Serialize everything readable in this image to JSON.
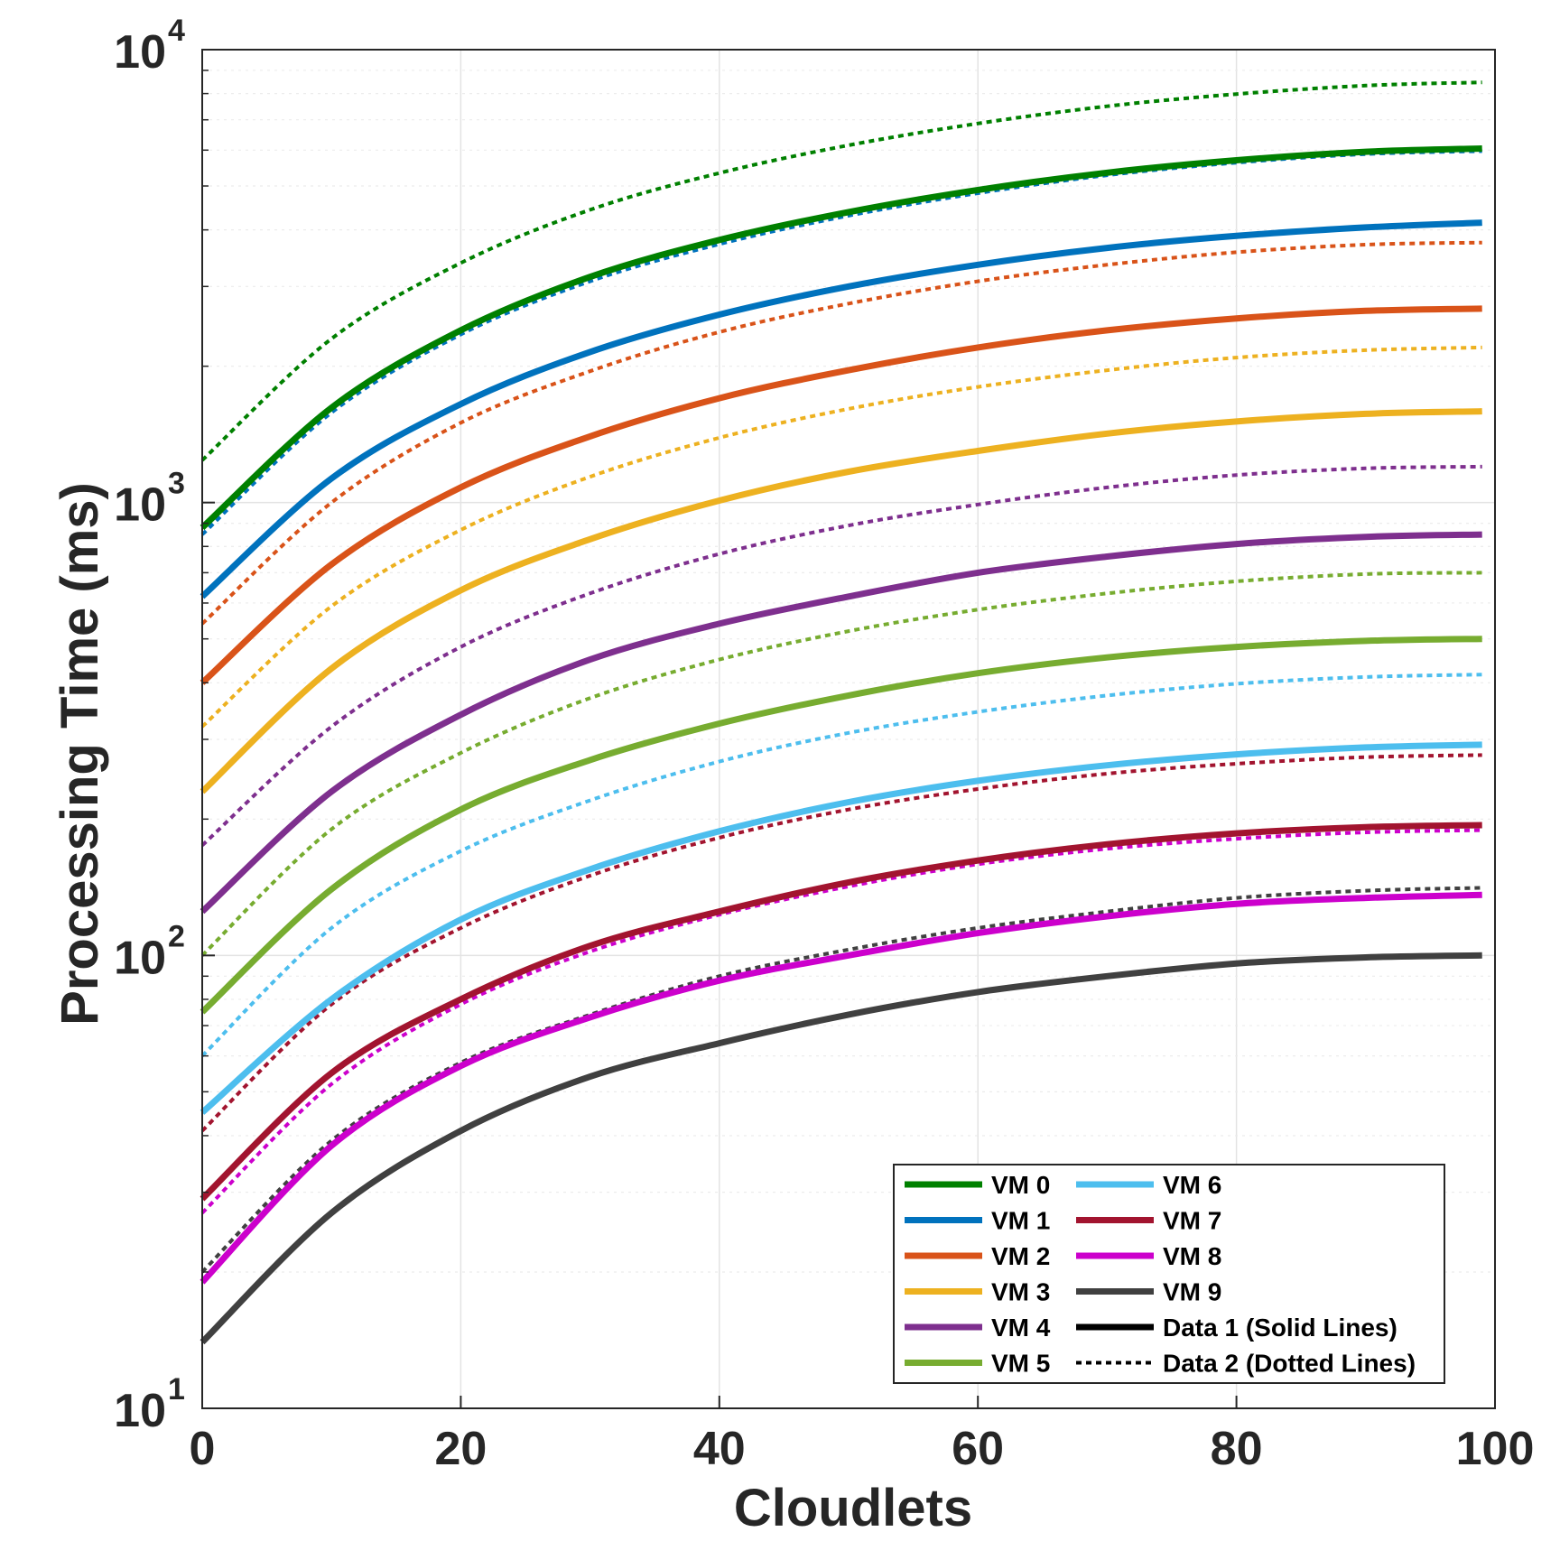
{
  "chart_data": {
    "type": "line",
    "title": "",
    "xlabel": "Cloudlets",
    "ylabel": "Processing Time (ms)",
    "xlim": [
      0,
      100
    ],
    "ylim": [
      10,
      10000
    ],
    "yscale": "log",
    "grid": true,
    "legend_position": "bottom-right",
    "x_ticks": [
      0,
      20,
      40,
      60,
      80,
      100
    ],
    "y_ticks": [
      {
        "value": 10,
        "base": "10",
        "exp": "1"
      },
      {
        "value": 100,
        "base": "10",
        "exp": "2"
      },
      {
        "value": 1000,
        "base": "10",
        "exp": "3"
      },
      {
        "value": 10000,
        "base": "10",
        "exp": "4"
      }
    ],
    "x": [
      0,
      10,
      20,
      30,
      40,
      50,
      60,
      70,
      80,
      90,
      99
    ],
    "series": [
      {
        "name": "VM 0",
        "color": "#008000",
        "style": "solid",
        "values": [
          880,
          1620,
          2400,
          3150,
          3800,
          4380,
          4900,
          5350,
          5700,
          5950,
          6050
        ]
      },
      {
        "name": "VM 1",
        "color": "#0072BD",
        "style": "solid",
        "values": [
          620,
          1130,
          1650,
          2150,
          2600,
          3000,
          3350,
          3650,
          3880,
          4050,
          4150
        ]
      },
      {
        "name": "VM 2",
        "color": "#D95319",
        "style": "solid",
        "values": [
          400,
          730,
          1080,
          1400,
          1700,
          1960,
          2200,
          2400,
          2550,
          2650,
          2680
        ]
      },
      {
        "name": "VM 3",
        "color": "#EDB120",
        "style": "solid",
        "values": [
          230,
          430,
          640,
          830,
          1010,
          1170,
          1300,
          1420,
          1510,
          1570,
          1590
        ]
      },
      {
        "name": "VM 4",
        "color": "#7E2F8E",
        "style": "solid",
        "values": [
          125,
          230,
          340,
          450,
          540,
          620,
          700,
          760,
          810,
          840,
          850
        ]
      },
      {
        "name": "VM 5",
        "color": "#77AC30",
        "style": "solid",
        "values": [
          75,
          140,
          210,
          270,
          325,
          375,
          420,
          455,
          480,
          495,
          500
        ]
      },
      {
        "name": "VM 6",
        "color": "#4DBEEE",
        "style": "solid",
        "values": [
          45,
          80,
          120,
          155,
          188,
          218,
          243,
          263,
          278,
          288,
          292
        ]
      },
      {
        "name": "VM 7",
        "color": "#A2142F",
        "style": "solid",
        "values": [
          29,
          55,
          80,
          105,
          125,
          145,
          162,
          176,
          186,
          192,
          194
        ]
      },
      {
        "name": "VM 8",
        "color": "#CC00CC",
        "style": "solid",
        "values": [
          19,
          38,
          57,
          73,
          88,
          100,
          112,
          122,
          130,
          134,
          136
        ]
      },
      {
        "name": "VM 9",
        "color": "#404040",
        "style": "solid",
        "values": [
          14,
          27,
          41,
          54,
          64,
          74,
          83,
          90,
          96,
          99,
          100
        ]
      },
      {
        "name": "VM 0",
        "color": "#008000",
        "style": "dotted",
        "values": [
          1240,
          2300,
          3380,
          4430,
          5340,
          6150,
          6870,
          7500,
          7980,
          8330,
          8470
        ]
      },
      {
        "name": "VM 1",
        "color": "#0072BD",
        "style": "dotted",
        "values": [
          850,
          1580,
          2350,
          3080,
          3720,
          4300,
          4820,
          5280,
          5630,
          5880,
          5970
        ]
      },
      {
        "name": "VM 2",
        "color": "#D95319",
        "style": "dotted",
        "values": [
          540,
          1000,
          1500,
          1950,
          2380,
          2750,
          3080,
          3350,
          3570,
          3710,
          3750
        ]
      },
      {
        "name": "VM 3",
        "color": "#EDB120",
        "style": "dotted",
        "values": [
          320,
          590,
          870,
          1140,
          1390,
          1610,
          1800,
          1960,
          2090,
          2170,
          2200
        ]
      },
      {
        "name": "VM 4",
        "color": "#7E2F8E",
        "style": "dotted",
        "values": [
          175,
          320,
          480,
          630,
          770,
          890,
          990,
          1080,
          1150,
          1190,
          1200
        ]
      },
      {
        "name": "VM 5",
        "color": "#77AC30",
        "style": "dotted",
        "values": [
          100,
          190,
          280,
          370,
          450,
          520,
          580,
          630,
          670,
          695,
          700
        ]
      },
      {
        "name": "VM 6",
        "color": "#4DBEEE",
        "style": "dotted",
        "values": [
          60,
          115,
          170,
          220,
          268,
          310,
          345,
          375,
          398,
          412,
          417
        ]
      },
      {
        "name": "VM 7",
        "color": "#A2142F",
        "style": "dotted",
        "values": [
          41,
          78,
          115,
          150,
          182,
          210,
          233,
          252,
          265,
          274,
          277
        ]
      },
      {
        "name": "VM 8",
        "color": "#CC00CC",
        "style": "dotted",
        "values": [
          27,
          52,
          78,
          102,
          123,
          142,
          159,
          172,
          181,
          187,
          189
        ]
      },
      {
        "name": "VM 9",
        "color": "#404040",
        "style": "dotted",
        "values": [
          20,
          39,
          58,
          74,
          90,
          103,
          115,
          125,
          134,
          139,
          141
        ]
      }
    ],
    "legend": {
      "entries": [
        {
          "label": "VM 0",
          "color": "#008000",
          "style": "solid"
        },
        {
          "label": "VM 1",
          "color": "#0072BD",
          "style": "solid"
        },
        {
          "label": "VM 2",
          "color": "#D95319",
          "style": "solid"
        },
        {
          "label": "VM 3",
          "color": "#EDB120",
          "style": "solid"
        },
        {
          "label": "VM 4",
          "color": "#7E2F8E",
          "style": "solid"
        },
        {
          "label": "VM 5",
          "color": "#77AC30",
          "style": "solid"
        },
        {
          "label": "VM 6",
          "color": "#4DBEEE",
          "style": "solid"
        },
        {
          "label": "VM 7",
          "color": "#A2142F",
          "style": "solid"
        },
        {
          "label": "VM 8",
          "color": "#CC00CC",
          "style": "solid"
        },
        {
          "label": "VM 9",
          "color": "#404040",
          "style": "solid"
        },
        {
          "label": "Data 1 (Solid Lines)",
          "color": "#000000",
          "style": "solid"
        },
        {
          "label": "Data 2 (Dotted Lines)",
          "color": "#000000",
          "style": "dotted"
        }
      ]
    }
  }
}
